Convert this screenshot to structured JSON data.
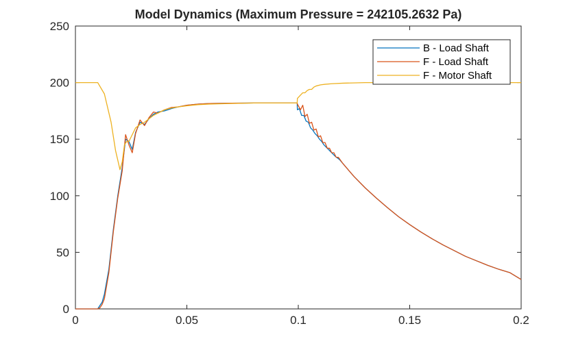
{
  "chart_data": {
    "type": "line",
    "title": "Model Dynamics (Maximum Pressure =  242105.2632 Pa)",
    "xlabel": "",
    "ylabel": "",
    "xlim": [
      0,
      0.2
    ],
    "ylim": [
      0,
      250
    ],
    "xticks": [
      0,
      0.05,
      0.1,
      0.15,
      0.2
    ],
    "xtick_labels": [
      "0",
      "0.05",
      "0.1",
      "0.15",
      "0.2"
    ],
    "yticks": [
      0,
      50,
      100,
      150,
      200,
      250
    ],
    "ytick_labels": [
      "0",
      "50",
      "100",
      "150",
      "200",
      "250"
    ],
    "grid": false,
    "legend_position": "top-right",
    "series": [
      {
        "name": "B - Load Shaft",
        "color": "#0072BD",
        "x": [
          0,
          0.01,
          0.011,
          0.012,
          0.013,
          0.015,
          0.017,
          0.019,
          0.021,
          0.0225,
          0.024,
          0.0255,
          0.027,
          0.029,
          0.031,
          0.033,
          0.035,
          0.037,
          0.04,
          0.043,
          0.046,
          0.05,
          0.055,
          0.06,
          0.07,
          0.08,
          0.09,
          0.0995,
          0.0996,
          0.1005,
          0.1015,
          0.1025,
          0.1035,
          0.1045,
          0.1055,
          0.1065,
          0.1075,
          0.1085,
          0.1095,
          0.1105,
          0.1115,
          0.1125,
          0.1135,
          0.1145,
          0.1155,
          0.1165,
          0.1175,
          0.1185,
          0.12,
          0.125,
          0.13,
          0.135,
          0.14,
          0.145,
          0.15,
          0.155,
          0.16,
          0.165,
          0.17,
          0.175,
          0.18,
          0.185,
          0.19,
          0.195,
          0.2
        ],
        "y": [
          0,
          0,
          3,
          6,
          13,
          35,
          70,
          100,
          125,
          150,
          148,
          141,
          156,
          165,
          163,
          168,
          172,
          174,
          175,
          177,
          178.5,
          180,
          181,
          181.5,
          181.8,
          182,
          182,
          182,
          176,
          177,
          171,
          171,
          166,
          165,
          160,
          158,
          155,
          153,
          150,
          148,
          145,
          143,
          141,
          139,
          137,
          135,
          133.5,
          132,
          128.5,
          117,
          107,
          98,
          89.5,
          81.5,
          74.5,
          68,
          62,
          56.5,
          51.5,
          46.5,
          42.5,
          38.5,
          35,
          32,
          26
        ]
      },
      {
        "name": "F - Load Shaft",
        "color": "#D95319",
        "x": [
          0,
          0.01,
          0.011,
          0.012,
          0.013,
          0.015,
          0.017,
          0.019,
          0.021,
          0.0225,
          0.024,
          0.0255,
          0.027,
          0.029,
          0.031,
          0.033,
          0.035,
          0.037,
          0.04,
          0.043,
          0.046,
          0.05,
          0.055,
          0.06,
          0.07,
          0.08,
          0.09,
          0.0995,
          0.0996,
          0.101,
          0.102,
          0.103,
          0.104,
          0.105,
          0.106,
          0.107,
          0.108,
          0.109,
          0.11,
          0.111,
          0.112,
          0.113,
          0.114,
          0.115,
          0.116,
          0.117,
          0.118,
          0.12,
          0.125,
          0.13,
          0.135,
          0.14,
          0.145,
          0.15,
          0.155,
          0.16,
          0.165,
          0.17,
          0.175,
          0.18,
          0.185,
          0.19,
          0.195,
          0.2
        ],
        "y": [
          0,
          0,
          1,
          4,
          9,
          32,
          68,
          98,
          122,
          154,
          145,
          138,
          155,
          167,
          162,
          169,
          174,
          173,
          176,
          178,
          178.5,
          180,
          181,
          181.5,
          181.8,
          182,
          182,
          182,
          181,
          176,
          180,
          170,
          172,
          164,
          165,
          158,
          159,
          152,
          153,
          147,
          147,
          142,
          142,
          138,
          138,
          134,
          134,
          128.5,
          117,
          107,
          98,
          89.5,
          81.5,
          74.5,
          68,
          62,
          56.5,
          51.5,
          46.5,
          42.5,
          38.5,
          35,
          32,
          26
        ]
      },
      {
        "name": "F - Motor Shaft",
        "color": "#EDB120",
        "x": [
          0,
          0.01,
          0.013,
          0.016,
          0.018,
          0.02,
          0.021,
          0.022,
          0.023,
          0.024,
          0.025,
          0.027,
          0.029,
          0.031,
          0.033,
          0.035,
          0.037,
          0.04,
          0.043,
          0.046,
          0.05,
          0.055,
          0.06,
          0.07,
          0.08,
          0.09,
          0.0995,
          0.0996,
          0.101,
          0.102,
          0.103,
          0.104,
          0.105,
          0.106,
          0.107,
          0.108,
          0.11,
          0.112,
          0.115,
          0.12,
          0.13,
          0.14,
          0.15,
          0.16,
          0.17,
          0.18,
          0.19,
          0.2
        ],
        "y": [
          200,
          200,
          190,
          165,
          140,
          123,
          130,
          145,
          148,
          148,
          152,
          160,
          163,
          165,
          168,
          171,
          173,
          176,
          177.5,
          178.5,
          179.5,
          180.5,
          181,
          181.5,
          182,
          182,
          182,
          186,
          189,
          191,
          191,
          193,
          194,
          194,
          196,
          197,
          198,
          198.5,
          199,
          199.5,
          200,
          200,
          200,
          200,
          200,
          200,
          200,
          200
        ]
      }
    ]
  }
}
